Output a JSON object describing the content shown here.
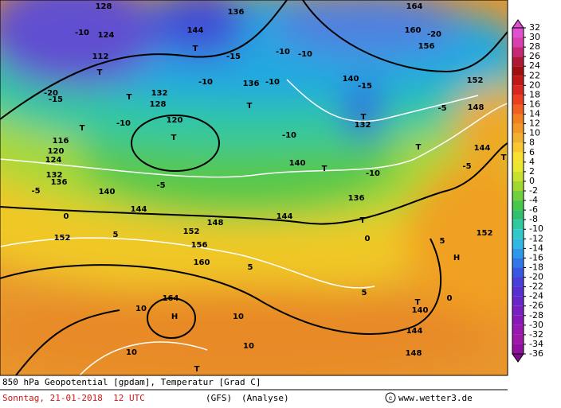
{
  "colorbar": {
    "ticks": [
      32,
      30,
      28,
      26,
      24,
      22,
      20,
      18,
      16,
      14,
      12,
      10,
      8,
      6,
      4,
      2,
      0,
      -2,
      -4,
      -6,
      -8,
      -10,
      -12,
      -14,
      -16,
      -18,
      -20,
      -22,
      -24,
      -26,
      -28,
      -30,
      -32,
      -34,
      -36
    ]
  },
  "map_labels": [
    "128",
    "144",
    "136",
    "164",
    "-20",
    "160",
    "156",
    "152",
    "148",
    "144",
    "-10",
    "-10",
    "-15",
    "-15",
    "140",
    "-10",
    "136",
    "-5",
    "-5",
    "T",
    "T",
    "-10",
    "140",
    "-10",
    "T",
    "-10",
    "T",
    "116",
    "120",
    "124",
    "132",
    "136",
    "140",
    "144",
    "0",
    "-5",
    "-5",
    "152",
    "5",
    "152",
    "156",
    "148",
    "144",
    "160",
    "5",
    "164",
    "H",
    "10",
    "10",
    "10",
    "10",
    "T",
    "5",
    "T",
    "140",
    "144",
    "148",
    "0",
    "5",
    "H",
    "152",
    "T",
    "0",
    "136",
    "T",
    "T",
    "132",
    "-15",
    "T",
    "112",
    "-20",
    "124",
    "-10",
    "T",
    "132",
    "128",
    "T",
    "120",
    "-10",
    "T"
  ],
  "footer": {
    "line1": "850 hPa Geopotential [gpdam], Temperatur [Grad C]",
    "date": "Sonntag, 21-01-2018  12 UTC",
    "model": "(GFS)",
    "run": "(Analyse)",
    "credit": "www.wetter3.de"
  }
}
